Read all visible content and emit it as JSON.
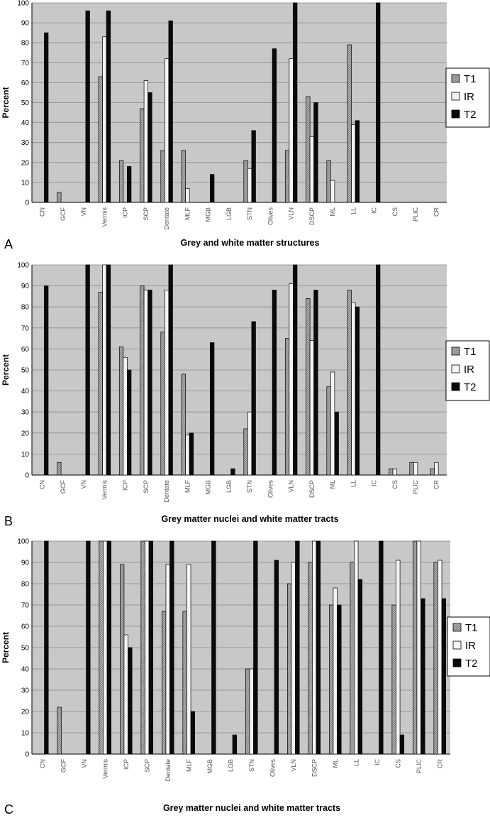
{
  "panel_letters": [
    "A",
    "B",
    "C"
  ],
  "legend": [
    "T1",
    "IR",
    "T2"
  ],
  "colors": {
    "plot_bg": "#c8c8c8",
    "grid": "#8a8a8a",
    "t1": "#a8a8a8",
    "ir": "#f4f4f4",
    "t2": "#0a0a0a",
    "tick_text": "#555555"
  },
  "chart_data": [
    {
      "type": "bar",
      "title": "Grey and white matter structures",
      "ylabel": "Percent",
      "ylim": [
        0,
        100
      ],
      "yticks": [
        0,
        10,
        20,
        30,
        40,
        50,
        60,
        70,
        80,
        90,
        100
      ],
      "grid": true,
      "legend_position": "right",
      "categories": [
        "CN",
        "GCF",
        "VN",
        "Vermis",
        "ICP",
        "SCP",
        "Dentate",
        "MLF",
        "MGB",
        "LGB",
        "STN",
        "Olives",
        "VLN",
        "DSCP",
        "ML",
        "LL",
        "IC",
        "CS",
        "PLIC",
        "CR"
      ],
      "series": [
        {
          "name": "T1",
          "values": [
            0,
            5,
            0,
            63,
            21,
            47,
            26,
            26,
            0,
            0,
            21,
            0,
            26,
            53,
            21,
            79,
            0,
            0,
            0,
            0
          ]
        },
        {
          "name": "IR",
          "values": [
            0,
            0,
            0,
            83,
            0,
            61,
            72,
            7,
            0,
            0,
            17,
            0,
            72,
            33,
            11,
            39,
            0,
            0,
            0,
            0
          ]
        },
        {
          "name": "T2",
          "values": [
            85,
            0,
            96,
            96,
            18,
            55,
            91,
            0,
            14,
            0,
            36,
            77,
            100,
            50,
            0,
            41,
            100,
            0,
            0,
            0
          ]
        }
      ]
    },
    {
      "type": "bar",
      "title": "Grey matter nuclei and white matter tracts",
      "ylabel": "Percent",
      "ylim": [
        0,
        100
      ],
      "yticks": [
        0,
        10,
        20,
        30,
        40,
        50,
        60,
        70,
        80,
        90,
        100
      ],
      "grid": true,
      "legend_position": "right",
      "categories": [
        "CN",
        "GCF",
        "VN",
        "Vermis",
        "ICP",
        "SCP",
        "Dentate",
        "MLF",
        "MGB",
        "LGB",
        "STN",
        "Olives",
        "VLN",
        "DSCP",
        "ML",
        "LL",
        "IC",
        "CS",
        "PLIC",
        "CR"
      ],
      "series": [
        {
          "name": "T1",
          "values": [
            0,
            6,
            0,
            87,
            61,
            90,
            68,
            48,
            0,
            0,
            22,
            0,
            65,
            84,
            42,
            88,
            0,
            3,
            6,
            3
          ]
        },
        {
          "name": "IR",
          "values": [
            0,
            0,
            0,
            100,
            56,
            88,
            88,
            19,
            0,
            0,
            30,
            0,
            91,
            64,
            49,
            82,
            0,
            3,
            6,
            6
          ]
        },
        {
          "name": "T2",
          "values": [
            90,
            0,
            100,
            100,
            50,
            88,
            100,
            20,
            63,
            3,
            73,
            88,
            100,
            88,
            30,
            80,
            100,
            0,
            0,
            0
          ]
        }
      ]
    },
    {
      "type": "bar",
      "title": "Grey matter nuclei and white matter tracts",
      "ylabel": "Percent",
      "ylim": [
        0,
        100
      ],
      "yticks": [
        0,
        10,
        20,
        30,
        40,
        50,
        60,
        70,
        80,
        90,
        100
      ],
      "grid": true,
      "legend_position": "right",
      "categories": [
        "CN",
        "GCF",
        "VN",
        "Vermis",
        "ICP",
        "SCP",
        "Dentate",
        "MLF",
        "MGB",
        "LGB",
        "STN",
        "Olives",
        "VLN",
        "DSCP",
        "ML",
        "LL",
        "IC",
        "CS",
        "PLIC",
        "CR"
      ],
      "series": [
        {
          "name": "T1",
          "values": [
            0,
            22,
            0,
            100,
            89,
            100,
            67,
            67,
            0,
            0,
            40,
            0,
            80,
            90,
            70,
            90,
            0,
            70,
            100,
            90
          ]
        },
        {
          "name": "IR",
          "values": [
            0,
            0,
            0,
            100,
            56,
            100,
            89,
            89,
            0,
            0,
            40,
            0,
            90,
            100,
            78,
            100,
            0,
            91,
            100,
            91
          ]
        },
        {
          "name": "T2",
          "values": [
            100,
            0,
            100,
            100,
            50,
            100,
            100,
            20,
            100,
            9,
            100,
            91,
            100,
            100,
            70,
            82,
            100,
            9,
            73,
            73
          ]
        }
      ]
    }
  ]
}
